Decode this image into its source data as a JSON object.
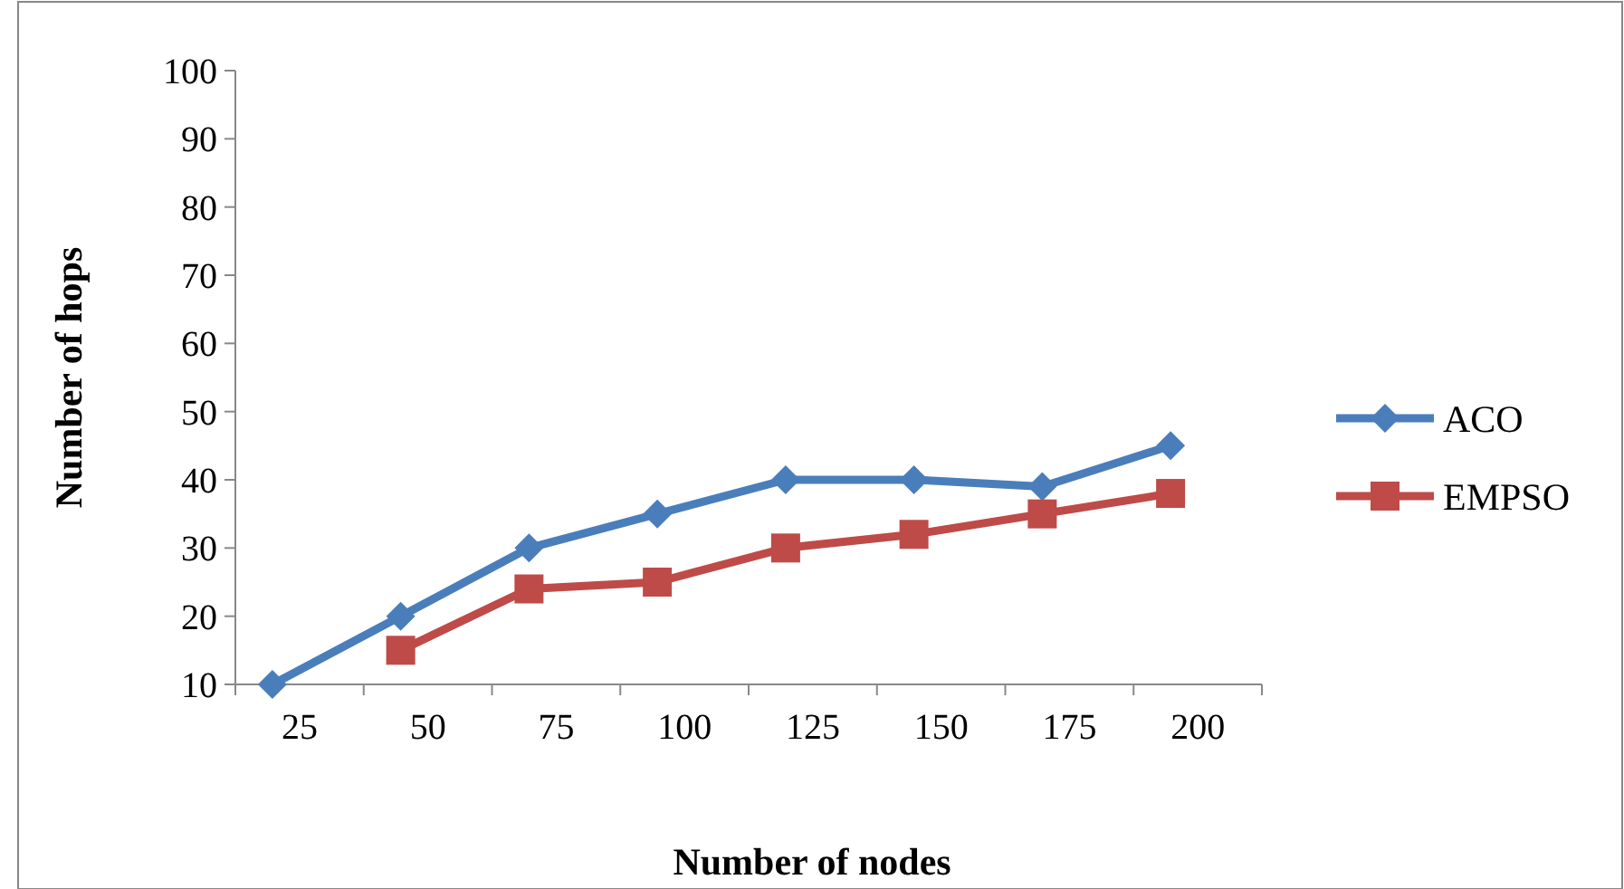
{
  "chart_data": {
    "type": "line",
    "xlabel": "Number of nodes",
    "ylabel": "Number of hops",
    "categories": [
      "25",
      "50",
      "75",
      "100",
      "125",
      "150",
      "175",
      "200"
    ],
    "series": [
      {
        "name": "ACO",
        "color": "#4a7ebb",
        "marker": "diamond",
        "values": [
          10,
          20,
          30,
          35,
          40,
          40,
          39,
          45
        ]
      },
      {
        "name": "EMPSO",
        "color": "#be4b48",
        "marker": "square",
        "values": [
          null,
          15,
          24,
          25,
          30,
          32,
          35,
          38
        ]
      }
    ],
    "ylim": [
      10,
      100
    ],
    "yticks": [
      10,
      20,
      30,
      40,
      50,
      60,
      70,
      80,
      90,
      100
    ],
    "grid": false,
    "legend": "right"
  }
}
